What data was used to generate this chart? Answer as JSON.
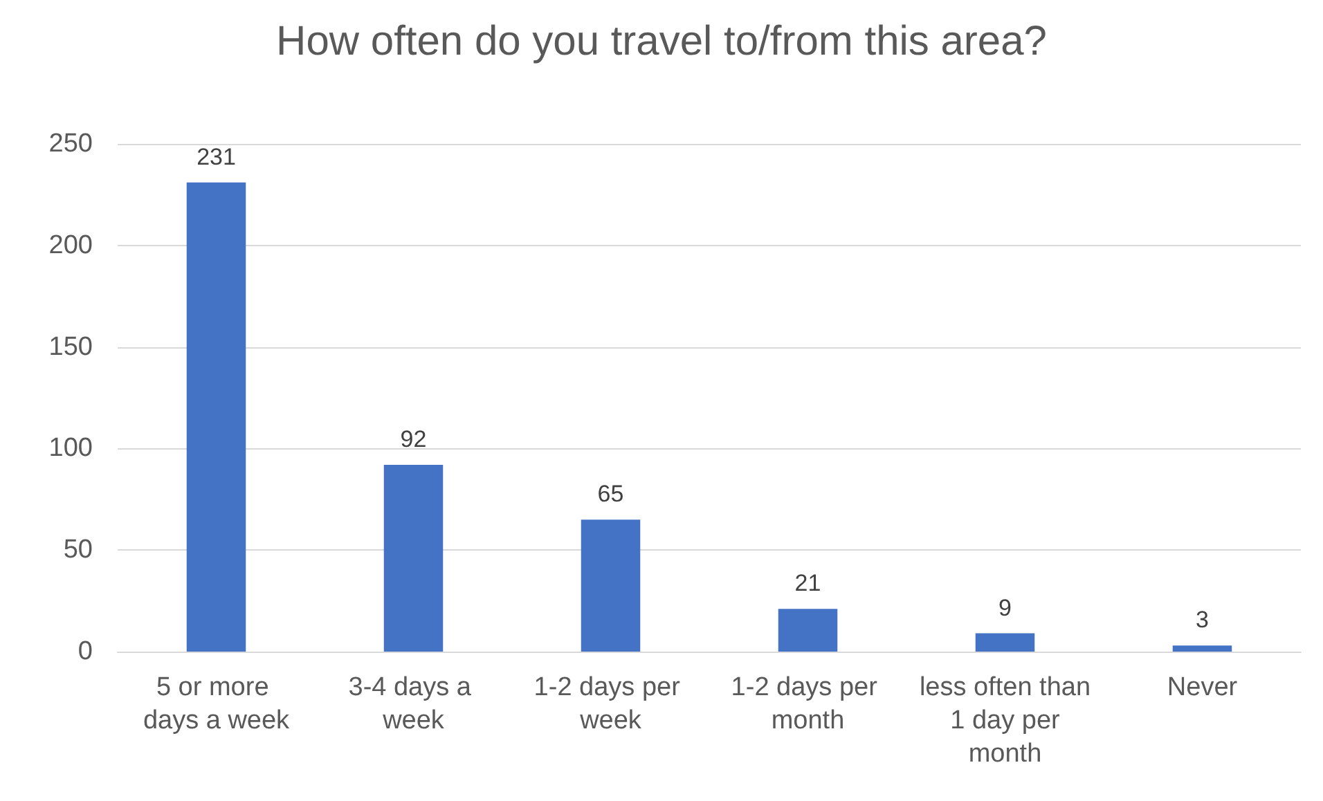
{
  "chart_data": {
    "type": "bar",
    "title": "How often do you travel to/from this area?",
    "categories": [
      "5 or more days a week",
      "3-4 days a week",
      "1-2 days per week",
      "1-2 days per month",
      "less often than 1 day per month",
      "Never"
    ],
    "values": [
      231,
      92,
      65,
      21,
      9,
      3
    ],
    "color": "#4472c4",
    "ylim": [
      0,
      250
    ],
    "yticks": [
      0,
      50,
      100,
      150,
      200,
      250
    ],
    "grid": "y",
    "data_labels": true
  }
}
